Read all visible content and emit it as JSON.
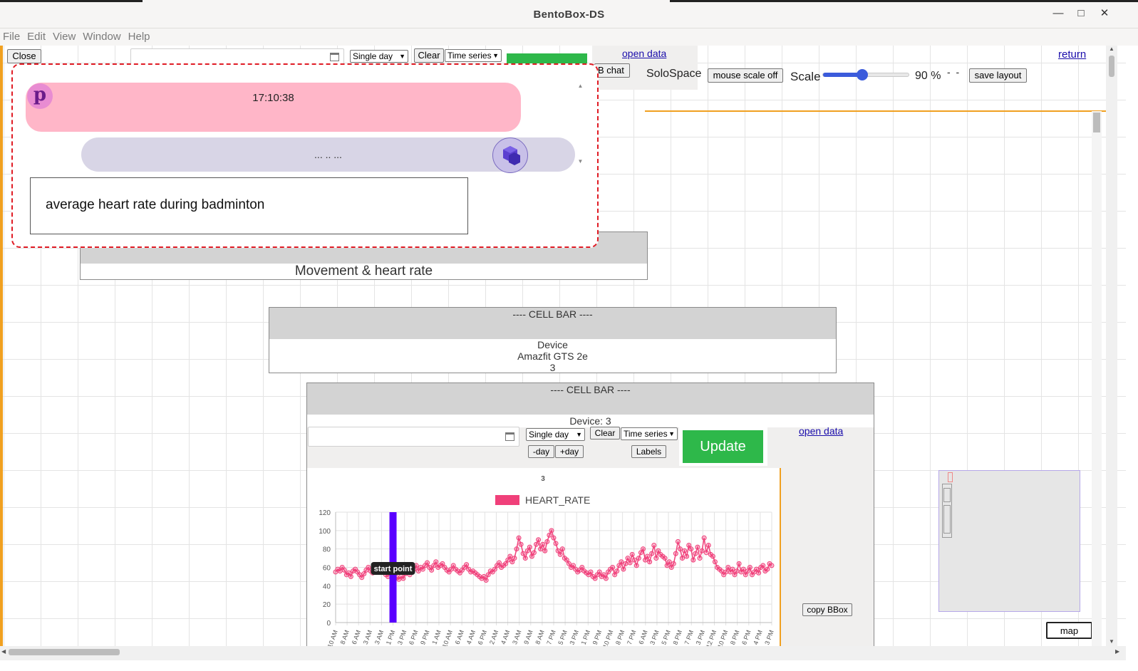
{
  "window": {
    "title": "BentoBox-DS",
    "min_icon": "minimize-icon",
    "max_icon": "maximize-icon",
    "close_icon": "close-icon",
    "min_glyph": "—",
    "max_glyph": "□",
    "close_glyph": "✕"
  },
  "menu": [
    "File",
    "Edit",
    "View",
    "Window",
    "Help"
  ],
  "toolbar": {
    "close_label": "Close",
    "range_select": "Single day",
    "clear_label": "Clear",
    "view_select": "Time series",
    "open_data_label": "open data",
    "b_chat_label": "B chat",
    "return_label": "return",
    "solospace_label": "SoloSpace",
    "mouse_scale_label": "mouse scale off",
    "scale_label": "Scale",
    "scale_value_text": "90 %",
    "scale_level": 0.45,
    "dashes": "-  -",
    "save_layout_label": "save layout"
  },
  "chat": {
    "user_avatar_letter": "p",
    "user_message_time": "17:10:38",
    "bot_message": "... .. ...",
    "input_value": "average heart rate during badminton",
    "bot_avatar_icon": "cube-cluster-icon"
  },
  "panels": {
    "movement_title": "Movement & heart rate",
    "cellbar1": {
      "title": "---- CELL BAR ----",
      "lines": [
        "Device",
        "Amazfit GTS 2e",
        "3"
      ]
    },
    "cellbar2": {
      "title": "---- CELL BAR ----",
      "device_label": "Device: 3",
      "range_select": "Single day",
      "clear_label": "Clear",
      "view_select": "Time series",
      "minus_day": "-day",
      "plus_day": "+day",
      "labels_label": "Labels",
      "update_label": "Update",
      "open_data_label": "open data",
      "copy_bbox_label": "copy BBox"
    }
  },
  "map_label": "map",
  "colors": {
    "update_green": "#2eb84a",
    "series_pink": "#f0407a",
    "marker_purple": "#5a00ff",
    "accent_orange": "#f0a020"
  },
  "chart_data": {
    "type": "line",
    "title": "3",
    "legend": "HEART_RATE",
    "legend_position": "top",
    "ylim": [
      0,
      120
    ],
    "yticks": [
      0,
      20,
      40,
      60,
      80,
      100,
      120
    ],
    "grid": true,
    "x_tick_labels": [
      "10 AM",
      "8 AM",
      "6 AM",
      "3 AM",
      "3 AM",
      "1 PM",
      "3 PM",
      "6 PM",
      "9 PM",
      "1 AM",
      "10 AM",
      "6 AM",
      "4 AM",
      "6 PM",
      "2 AM",
      "4 AM",
      "3 AM",
      "9 AM",
      "8 AM",
      "7 PM",
      "5 PM",
      "3 PM",
      "1 PM",
      "9 PM",
      "10 PM",
      "8 PM",
      "7 PM",
      "6 AM",
      "3 PM",
      "5 PM",
      "8 PM",
      "7 PM",
      "3 PM",
      "12 PM",
      "10 PM",
      "8 PM",
      "6 PM",
      "4 PM",
      "3 PM"
    ],
    "marker": {
      "label": "start point",
      "x_index": 5
    },
    "values": [
      55,
      58,
      56,
      60,
      57,
      52,
      54,
      50,
      56,
      58,
      55,
      52,
      49,
      53,
      57,
      60,
      56,
      54,
      58,
      62,
      60,
      57,
      55,
      52,
      50,
      54,
      56,
      52,
      49,
      47,
      50,
      48,
      53,
      56,
      52,
      55,
      58,
      62,
      56,
      60,
      58,
      62,
      65,
      60,
      57,
      62,
      66,
      60,
      62,
      64,
      60,
      57,
      55,
      58,
      62,
      58,
      56,
      54,
      57,
      60,
      63,
      58,
      55,
      56,
      54,
      52,
      50,
      48,
      50,
      46,
      52,
      56,
      55,
      58,
      62,
      65,
      60,
      62,
      64,
      68,
      72,
      66,
      70,
      80,
      92,
      85,
      75,
      70,
      78,
      82,
      72,
      76,
      85,
      90,
      80,
      85,
      78,
      88,
      95,
      100,
      92,
      86,
      78,
      74,
      80,
      70,
      68,
      64,
      60,
      62,
      58,
      55,
      57,
      60,
      56,
      54,
      52,
      55,
      50,
      48,
      52,
      55,
      50,
      52,
      48,
      55,
      58,
      60,
      52,
      56,
      62,
      66,
      58,
      64,
      70,
      65,
      74,
      68,
      62,
      70,
      76,
      80,
      68,
      72,
      66,
      75,
      84,
      70,
      78,
      74,
      72,
      70,
      62,
      66,
      60,
      64,
      75,
      88,
      80,
      70,
      78,
      72,
      84,
      80,
      68,
      75,
      82,
      70,
      78,
      92,
      76,
      84,
      74,
      72,
      66,
      60,
      58,
      56,
      52,
      55,
      60,
      55,
      58,
      52,
      56,
      64,
      55,
      58,
      52,
      56,
      60,
      52,
      55,
      58,
      54,
      60,
      62,
      56,
      58,
      64,
      62
    ]
  }
}
